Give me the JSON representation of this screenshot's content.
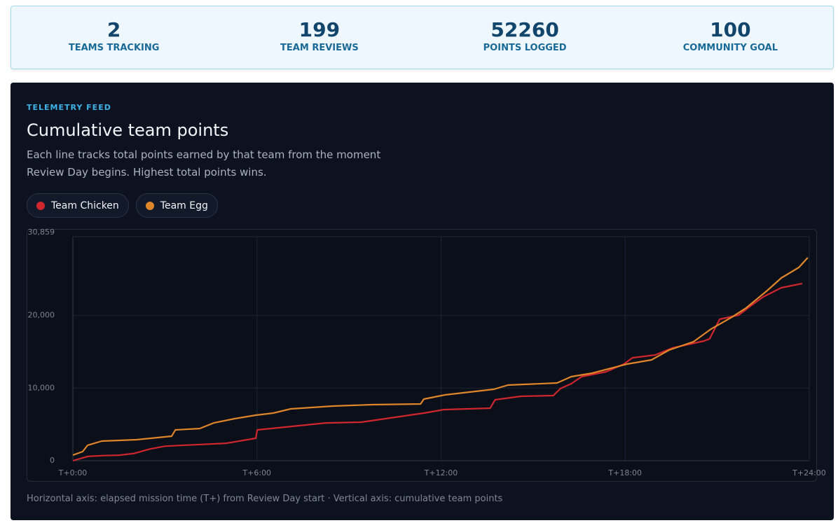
{
  "stats": [
    {
      "value": 2,
      "label": "TEAMS TRACKING"
    },
    {
      "value": 199,
      "label": "TEAM REVIEWS"
    },
    {
      "value": 52260,
      "label": "POINTS LOGGED"
    },
    {
      "value": 100,
      "label": "COMMUNITY GOAL"
    }
  ],
  "panel": {
    "eyebrow": "TELEMETRY FEED",
    "heading": "Cumulative team points",
    "description": "Each line tracks total points earned by that team from the moment Review Day begins. Highest total points wins.",
    "footnote": "Horizontal axis: elapsed mission time (T+) from Review Day start · Vertical axis: cumulative team points"
  },
  "chart_data": {
    "type": "line",
    "xlim": [
      0,
      24
    ],
    "xticks": [
      {
        "value": 0,
        "label": "T+0:00"
      },
      {
        "value": 6,
        "label": "T+6:00"
      },
      {
        "value": 12,
        "label": "T+12:00"
      },
      {
        "value": 18,
        "label": "T+18:00"
      },
      {
        "value": 24,
        "label": "T+24:00"
      }
    ],
    "ylim": [
      0,
      30859
    ],
    "yticks": [
      0,
      {
        "value": 10000,
        "label": "10,000"
      },
      {
        "value": 20000,
        "label": "20,000"
      },
      {
        "value": 30859,
        "label": "30,859"
      }
    ],
    "grid": true,
    "series": [
      {
        "name": "Team Chicken",
        "color": "#d0262e",
        "x": [
          0,
          0.5,
          1,
          1.5,
          2,
          2.5,
          3,
          3.5,
          4,
          5,
          5.96,
          6.01,
          8.24,
          9.4,
          11.44,
          12.1,
          13.6,
          13.76,
          14.6,
          15.66,
          15.89,
          16.24,
          16.58,
          17.38,
          17.95,
          18.24,
          18.98,
          19.54,
          20.57,
          20.75,
          21.08,
          21.7,
          22.06,
          22.5,
          23.09,
          23.77
        ],
        "values": [
          0,
          600,
          700,
          750,
          1000,
          1600,
          2000,
          2100,
          2200,
          2400,
          3086,
          4240,
          5200,
          5300,
          6560,
          7040,
          7230,
          8390,
          8870,
          8970,
          9930,
          10600,
          11570,
          12250,
          13300,
          14180,
          14560,
          15530,
          16490,
          16780,
          19480,
          20060,
          21215,
          22570,
          23820,
          24400
        ]
      },
      {
        "name": "Team Egg",
        "color": "#e0862a",
        "x": [
          0,
          0.32,
          0.48,
          0.94,
          2.08,
          3.22,
          3.34,
          4.13,
          4.59,
          5.27,
          5.96,
          6.53,
          7.1,
          8.47,
          9.73,
          11.33,
          11.44,
          12.13,
          13.72,
          14.18,
          15.78,
          16.24,
          16.92,
          18.06,
          18.86,
          19.43,
          20.23,
          20.8,
          21.48,
          21.94,
          22.63,
          23.09,
          23.66,
          23.95
        ],
        "values": [
          770,
          1250,
          2120,
          2700,
          2890,
          3375,
          4240,
          4430,
          5200,
          5790,
          6270,
          6560,
          7136,
          7520,
          7715,
          7810,
          8490,
          9065,
          9836,
          10415,
          10700,
          11570,
          12050,
          13310,
          13890,
          15240,
          16395,
          18140,
          19780,
          21030,
          23430,
          25170,
          26620,
          27970
        ]
      }
    ]
  }
}
